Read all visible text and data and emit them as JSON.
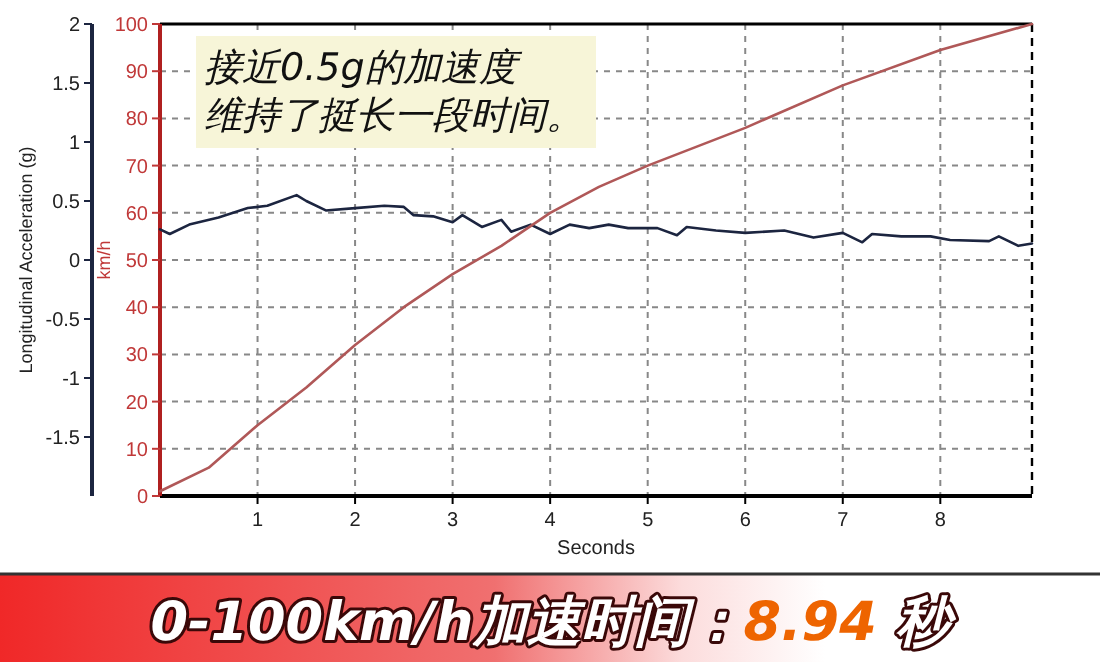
{
  "chart_data": {
    "type": "line",
    "title": "0-100km/h加速时间：**8.94** 秒",
    "xlabel": "Seconds",
    "ylabel": "Longitudinal Acceleration (g)",
    "y2label": "km/h",
    "annotations": [
      "接近0.5g的加速度",
      "维持了挺长一段时间。"
    ],
    "xlim": [
      0,
      8.94
    ],
    "xticks": [
      1,
      2,
      3,
      4,
      5,
      6,
      7,
      8
    ],
    "ylim": [
      -2,
      2
    ],
    "yticks": [
      -1.5,
      -1,
      -0.5,
      0,
      0.5,
      1,
      1.5,
      2
    ],
    "y2lim": [
      0,
      100
    ],
    "y2ticks": [
      0,
      10,
      20,
      30,
      40,
      50,
      60,
      70,
      80,
      90,
      100
    ],
    "grid": true,
    "series": [
      {
        "color": "#1c2540",
        "x": [
          0,
          0.1,
          0.3,
          0.6,
          0.9,
          1.1,
          1.4,
          1.5,
          1.7,
          2.0,
          2.3,
          2.5,
          2.6,
          2.8,
          3.0,
          3.1,
          3.3,
          3.5,
          3.6,
          3.8,
          4.0,
          4.2,
          4.4,
          4.6,
          4.8,
          5.1,
          5.3,
          5.4,
          5.7,
          6.0,
          6.4,
          6.7,
          7.0,
          7.2,
          7.3,
          7.6,
          7.9,
          8.1,
          8.5,
          8.6,
          8.8,
          8.94
        ],
        "values": [
          0.26,
          0.22,
          0.3,
          0.36,
          0.44,
          0.46,
          0.55,
          0.5,
          0.42,
          0.44,
          0.46,
          0.45,
          0.38,
          0.37,
          0.32,
          0.38,
          0.28,
          0.34,
          0.24,
          0.3,
          0.22,
          0.3,
          0.27,
          0.3,
          0.27,
          0.27,
          0.21,
          0.28,
          0.25,
          0.23,
          0.25,
          0.19,
          0.23,
          0.15,
          0.22,
          0.2,
          0.2,
          0.17,
          0.16,
          0.2,
          0.12,
          0.14
        ]
      },
      {
        "axis": "y2",
        "color": "#b05858",
        "x": [
          0,
          0.5,
          1,
          1.5,
          2,
          2.5,
          3,
          3.5,
          4,
          4.5,
          5,
          6,
          7,
          8,
          8.94
        ],
        "values": [
          1,
          6,
          15,
          23,
          32,
          40,
          47,
          53,
          60,
          65.5,
          70,
          78,
          87,
          94.5,
          100
        ]
      }
    ]
  }
}
